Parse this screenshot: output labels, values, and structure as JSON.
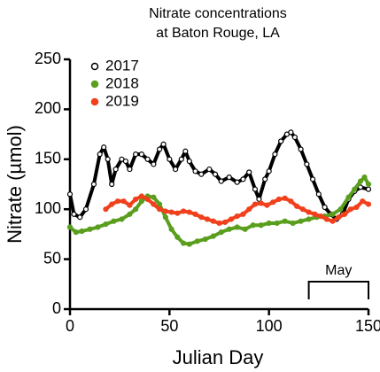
{
  "chart_data": {
    "type": "scatter",
    "title": [
      "Nitrate concentrations",
      "at Baton Rouge, LA"
    ],
    "x_label": "Julian Day",
    "y_label": "Nitrate (µmol)",
    "xlim": [
      0,
      150
    ],
    "ylim": [
      0,
      250
    ],
    "xticks": [
      0,
      50,
      100,
      150
    ],
    "yticks": [
      0,
      50,
      100,
      150,
      200,
      250
    ],
    "grid": false,
    "legend": "top-left",
    "annotation": {
      "text": "May",
      "x_start": 120,
      "x_end": 150
    },
    "series": [
      {
        "name": "2017",
        "color": "#000000",
        "marker": "open",
        "x": [
          0,
          2,
          5,
          8,
          12,
          15,
          17,
          19,
          21,
          23,
          26,
          28,
          30,
          33,
          36,
          39,
          42,
          45,
          47,
          50,
          53,
          56,
          58,
          60,
          63,
          66,
          70,
          73,
          76,
          80,
          84,
          87,
          90,
          93,
          95,
          98,
          100,
          103,
          106,
          109,
          111,
          113,
          116,
          119,
          122,
          125,
          128,
          131,
          134,
          137,
          140,
          143,
          146,
          150
        ],
        "values": [
          115,
          95,
          92,
          100,
          125,
          155,
          162,
          150,
          125,
          140,
          150,
          148,
          140,
          155,
          155,
          150,
          145,
          160,
          165,
          150,
          140,
          150,
          158,
          148,
          138,
          135,
          140,
          135,
          128,
          132,
          127,
          130,
          137,
          120,
          110,
          130,
          138,
          155,
          168,
          175,
          177,
          172,
          160,
          145,
          130,
          115,
          102,
          95,
          90,
          95,
          110,
          118,
          122,
          120
        ]
      },
      {
        "name": "2018",
        "color": "#5a9e1e",
        "marker": "filled",
        "x": [
          0,
          3,
          6,
          10,
          14,
          18,
          22,
          26,
          30,
          33,
          36,
          39,
          42,
          45,
          48,
          51,
          54,
          57,
          60,
          64,
          68,
          72,
          76,
          80,
          84,
          88,
          92,
          96,
          100,
          104,
          108,
          112,
          116,
          120,
          124,
          128,
          132,
          136,
          140,
          143,
          146,
          148,
          150
        ],
        "values": [
          82,
          77,
          78,
          80,
          82,
          85,
          88,
          90,
          95,
          100,
          108,
          113,
          112,
          105,
          92,
          80,
          72,
          66,
          65,
          68,
          70,
          73,
          77,
          80,
          82,
          80,
          84,
          84,
          86,
          86,
          88,
          86,
          88,
          90,
          92,
          93,
          95,
          100,
          112,
          120,
          128,
          132,
          125
        ]
      },
      {
        "name": "2019",
        "color": "#f0401c",
        "marker": "filled",
        "x": [
          18,
          21,
          24,
          27,
          30,
          33,
          36,
          39,
          42,
          45,
          48,
          51,
          54,
          57,
          60,
          63,
          66,
          69,
          72,
          75,
          78,
          81,
          84,
          87,
          90,
          93,
          96,
          99,
          102,
          105,
          108,
          111,
          114,
          117,
          120,
          123,
          126,
          129,
          132,
          135,
          138,
          141,
          144,
          147,
          150
        ],
        "values": [
          100,
          105,
          108,
          108,
          104,
          110,
          113,
          110,
          105,
          100,
          98,
          97,
          96,
          98,
          97,
          95,
          92,
          90,
          88,
          86,
          87,
          90,
          93,
          95,
          100,
          105,
          106,
          104,
          107,
          110,
          111,
          108,
          103,
          100,
          97,
          95,
          93,
          90,
          88,
          92,
          95,
          100,
          102,
          108,
          105
        ]
      }
    ]
  }
}
